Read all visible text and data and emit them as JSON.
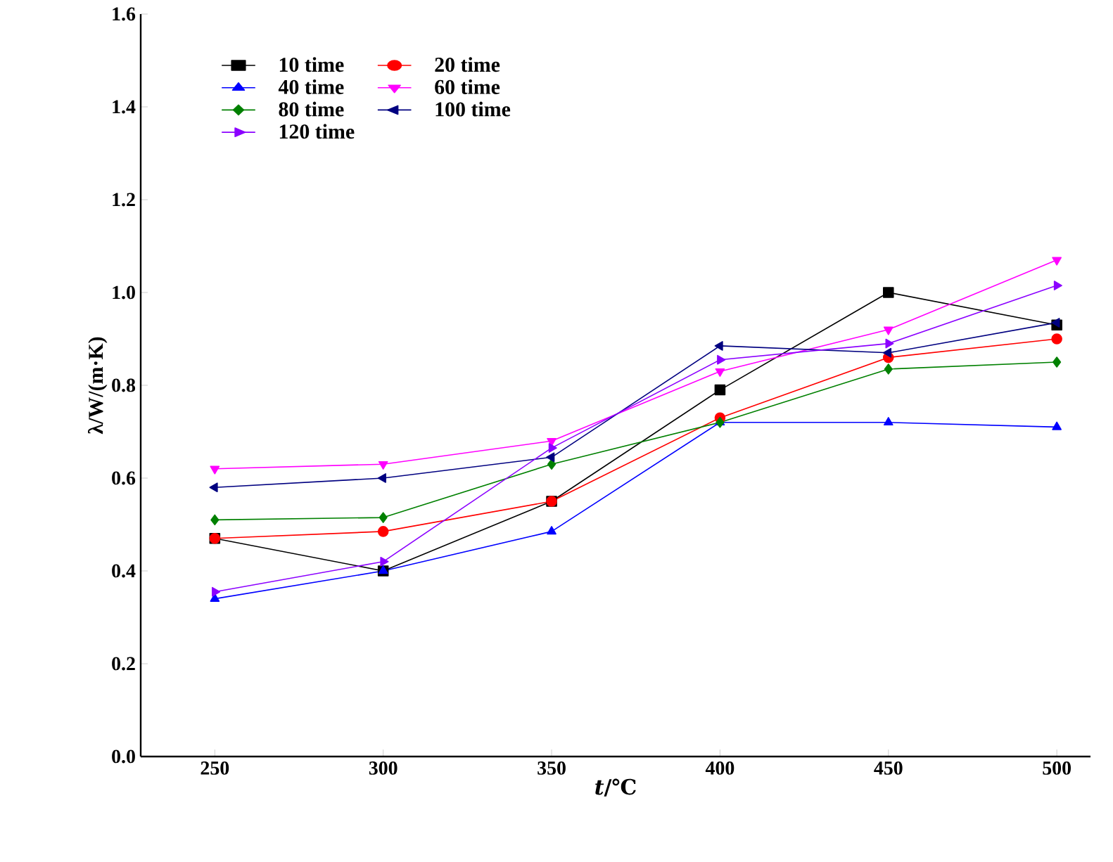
{
  "chart_data": {
    "type": "line",
    "xlabel": "*t*/℃",
    "ylabel": "λ/W/(m·K)",
    "x": [
      250,
      300,
      350,
      400,
      450,
      500
    ],
    "xlim": [
      228,
      510
    ],
    "xticks": [
      250,
      300,
      350,
      400,
      450,
      500
    ],
    "ylim": [
      0,
      1.6
    ],
    "yticks": [
      {
        "value": 0,
        "label": "0.0"
      },
      0.2,
      0.4,
      0.6,
      0.8,
      {
        "value": 1,
        "label": "1.0"
      },
      1.2,
      1.4,
      1.6
    ],
    "legend": "top left",
    "grid": false,
    "line_style": "solid",
    "series": [
      {
        "name": "10 time",
        "color": "#000000",
        "marker": "square",
        "values": [
          0.47,
          0.4,
          0.55,
          0.79,
          1.0,
          0.93
        ]
      },
      {
        "name": "20 time",
        "color": "#ff0000",
        "marker": "circle",
        "values": [
          0.47,
          0.485,
          0.55,
          0.73,
          0.86,
          0.9
        ]
      },
      {
        "name": "40 time",
        "color": "#0000ff",
        "marker": "triangle",
        "values": [
          0.34,
          0.4,
          0.485,
          0.72,
          0.72,
          0.71
        ]
      },
      {
        "name": "60 time",
        "color": "#ff00ff",
        "marker": "triangle-down",
        "values": [
          0.62,
          0.63,
          0.68,
          0.83,
          0.92,
          1.07
        ]
      },
      {
        "name": "80 time",
        "color": "#008000",
        "marker": "diamond",
        "values": [
          0.51,
          0.515,
          0.63,
          0.72,
          0.835,
          0.85
        ]
      },
      {
        "name": "100 time",
        "color": "#000080",
        "marker": "triangle-left",
        "values": [
          0.58,
          0.6,
          0.645,
          0.885,
          0.87,
          0.935
        ]
      },
      {
        "name": "120 time",
        "color": "#8b00ff",
        "marker": "triangle-right",
        "values": [
          0.355,
          0.42,
          0.665,
          0.855,
          0.89,
          1.015
        ]
      }
    ]
  }
}
